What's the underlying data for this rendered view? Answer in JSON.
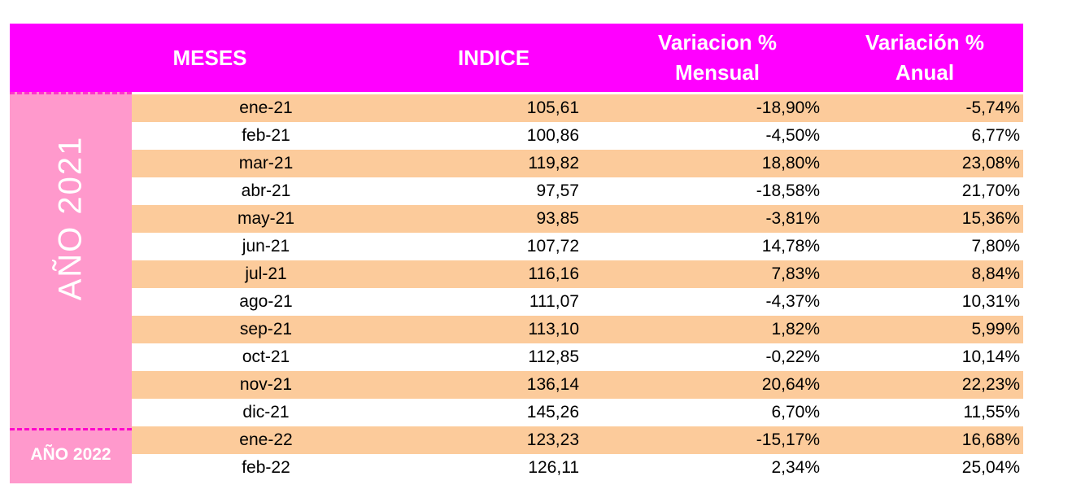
{
  "header": {
    "meses": "MESES",
    "indice": "INDICE",
    "variacion_mensual_line1": "Variacion %",
    "variacion_mensual_line2": "Mensual",
    "variacion_anual_line1": "Variación %",
    "variacion_anual_line2": "Anual"
  },
  "years": {
    "y2021": "AÑO 2021",
    "y2022": "AÑO 2022"
  },
  "colors": {
    "header_bg": "#ff00ff",
    "year_bg": "#ff99cc",
    "row_shade": "#fccb9b"
  },
  "rows": [
    {
      "mes": "ene-21",
      "indice": "105,61",
      "mensual": "-18,90%",
      "anual": "-5,74%"
    },
    {
      "mes": "feb-21",
      "indice": "100,86",
      "mensual": "-4,50%",
      "anual": "6,77%"
    },
    {
      "mes": "mar-21",
      "indice": "119,82",
      "mensual": "18,80%",
      "anual": "23,08%"
    },
    {
      "mes": "abr-21",
      "indice": "97,57",
      "mensual": "-18,58%",
      "anual": "21,70%"
    },
    {
      "mes": "may-21",
      "indice": "93,85",
      "mensual": "-3,81%",
      "anual": "15,36%"
    },
    {
      "mes": "jun-21",
      "indice": "107,72",
      "mensual": "14,78%",
      "anual": "7,80%"
    },
    {
      "mes": "jul-21",
      "indice": "116,16",
      "mensual": "7,83%",
      "anual": "8,84%"
    },
    {
      "mes": "ago-21",
      "indice": "111,07",
      "mensual": "-4,37%",
      "anual": "10,31%"
    },
    {
      "mes": "sep-21",
      "indice": "113,10",
      "mensual": "1,82%",
      "anual": "5,99%"
    },
    {
      "mes": "oct-21",
      "indice": "112,85",
      "mensual": "-0,22%",
      "anual": "10,14%"
    },
    {
      "mes": "nov-21",
      "indice": "136,14",
      "mensual": "20,64%",
      "anual": "22,23%"
    },
    {
      "mes": "dic-21",
      "indice": "145,26",
      "mensual": "6,70%",
      "anual": "11,55%"
    },
    {
      "mes": "ene-22",
      "indice": "123,23",
      "mensual": "-15,17%",
      "anual": "16,68%"
    },
    {
      "mes": "feb-22",
      "indice": "126,11",
      "mensual": "2,34%",
      "anual": "25,04%"
    }
  ]
}
